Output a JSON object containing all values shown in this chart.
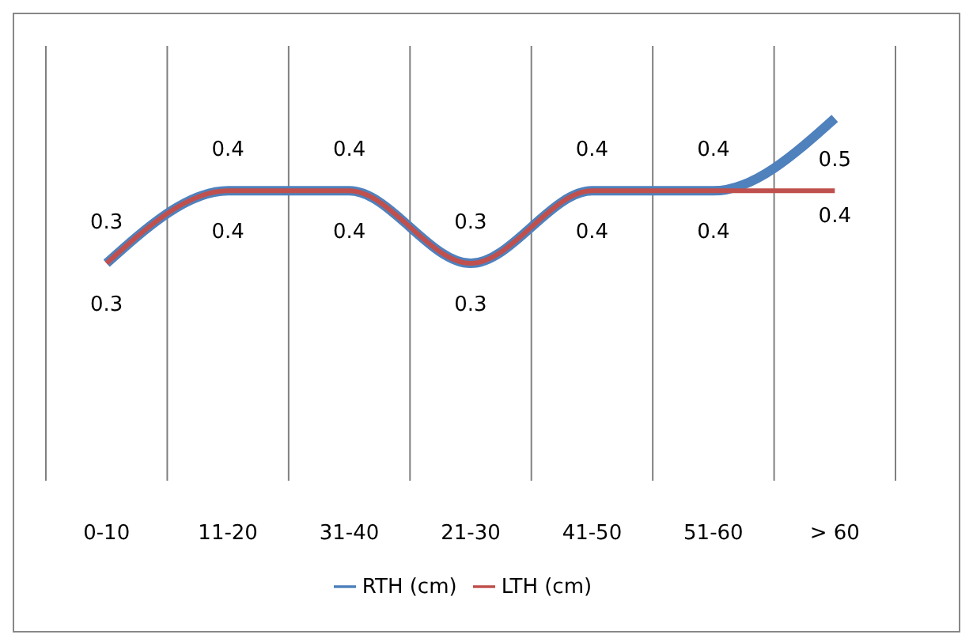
{
  "chart_data": {
    "type": "line",
    "categories": [
      "0-10",
      "11-20",
      "31-40",
      "21-30",
      "41-50",
      "51-60",
      "> 60"
    ],
    "series": [
      {
        "name": "RTH (cm)",
        "color": "#4f81bd",
        "values": [
          0.3,
          0.4,
          0.4,
          0.3,
          0.4,
          0.4,
          0.5
        ],
        "value_labels": [
          "0.3",
          "0.4",
          "0.4",
          "0.3",
          "0.4",
          "0.4",
          "0.5"
        ]
      },
      {
        "name": "LTH (cm)",
        "color": "#c0504d",
        "values": [
          0.3,
          0.4,
          0.4,
          0.3,
          0.4,
          0.4,
          0.4
        ],
        "value_labels": [
          "0.3",
          "0.4",
          "0.4",
          "0.3",
          "0.4",
          "0.4",
          "0.4"
        ]
      }
    ],
    "grid": "x",
    "legend": "bottom",
    "marker": "none",
    "line_style": "solid"
  }
}
